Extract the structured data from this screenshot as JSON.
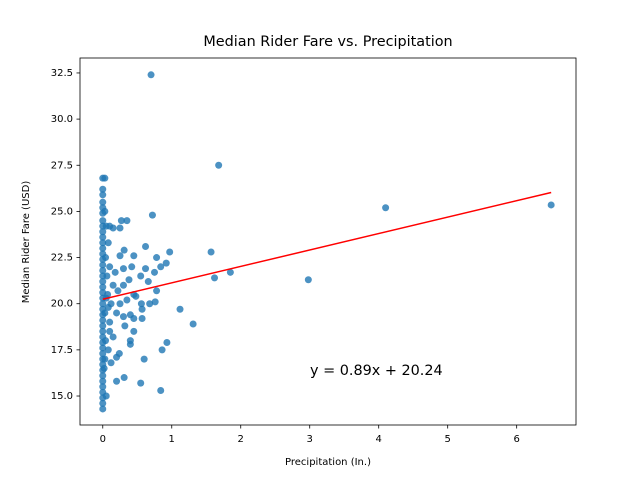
{
  "chart_data": {
    "type": "scatter",
    "title": "Median Rider Fare vs. Precipitation",
    "xlabel": "Precipitation (In.)",
    "ylabel": "Median Rider Fare (USD)",
    "annotation": "y = 0.89x + 20.24",
    "annotation_color": "#ff0000",
    "xlim": [
      -0.33,
      6.86
    ],
    "ylim": [
      13.43,
      33.31
    ],
    "xticks": [
      0,
      1,
      2,
      3,
      4,
      5,
      6
    ],
    "yticks": [
      {
        "value": 15,
        "label": "15.0"
      },
      {
        "value": 17.5,
        "label": "17.5"
      },
      {
        "value": 20,
        "label": "20.0"
      },
      {
        "value": 22.5,
        "label": "22.5"
      },
      {
        "value": 25,
        "label": "25.0"
      },
      {
        "value": 27.5,
        "label": "27.5"
      },
      {
        "value": 30,
        "label": "30.0"
      },
      {
        "value": 32.5,
        "label": "32.5"
      }
    ],
    "series": [
      {
        "color": "#1f77b4",
        "x": [
          0,
          0,
          0,
          0,
          0,
          0,
          0,
          0,
          0,
          0,
          0,
          0,
          0,
          0,
          0,
          0,
          0,
          0,
          0,
          0,
          0,
          0,
          0,
          0,
          0,
          0,
          0,
          0,
          0,
          0,
          0,
          0,
          0,
          0,
          0,
          0,
          0,
          0,
          0,
          0,
          0,
          0.03,
          0.03,
          0.05,
          0.04,
          0.06,
          0.05,
          0.03,
          0.04,
          0.03,
          0.05,
          0.02,
          0.7,
          1.68,
          4.1,
          6.5,
          2.98,
          1.85,
          1.57,
          1.62,
          1.12,
          1.31,
          0.97,
          0.92,
          0.84,
          0.78,
          0.72,
          0.62,
          0.62,
          0.55,
          0.75,
          0.66,
          0.78,
          0.76,
          0.68,
          0.56,
          0.57,
          0.57,
          0.93,
          0.86,
          0.6,
          0.84,
          0.55,
          0.31,
          0.2,
          0.35,
          0.27,
          0.25,
          0.31,
          0.45,
          0.42,
          0.25,
          0.18,
          0.3,
          0.38,
          0.3,
          0.45,
          0.35,
          0.22,
          0.4,
          0.45,
          0.3,
          0.32,
          0.45,
          0.4,
          0.4,
          0.24,
          0.2,
          0.15,
          0.1,
          0.12,
          0.15,
          0.1,
          0.08,
          0.1,
          0.15,
          0.2,
          0.25,
          0.48,
          0.07,
          0.08,
          0.1,
          0.08,
          0.12
        ],
        "values": [
          26.8,
          26.2,
          25.9,
          25.5,
          25.2,
          24.9,
          24.5,
          24.2,
          23.9,
          23.6,
          23.3,
          23.0,
          22.7,
          22.4,
          22.1,
          21.8,
          21.5,
          21.2,
          20.9,
          20.6,
          20.3,
          20.0,
          19.7,
          19.4,
          19.1,
          18.8,
          18.5,
          18.2,
          17.9,
          17.6,
          17.3,
          17.0,
          16.7,
          16.4,
          16.1,
          15.8,
          15.5,
          15.2,
          14.9,
          14.6,
          14.3,
          26.8,
          25.0,
          24.2,
          22.5,
          21.5,
          20.3,
          19.5,
          18.0,
          17.0,
          15.0,
          16.5,
          32.4,
          27.5,
          25.2,
          25.35,
          21.3,
          21.7,
          22.8,
          21.4,
          19.7,
          18.9,
          22.8,
          22.2,
          22.0,
          22.5,
          24.8,
          23.1,
          21.9,
          21.5,
          21.7,
          21.2,
          20.7,
          20.1,
          20.0,
          20.0,
          19.7,
          19.2,
          17.9,
          17.5,
          17.0,
          15.3,
          15.7,
          16.0,
          15.8,
          24.5,
          24.5,
          24.1,
          22.9,
          22.6,
          22.0,
          22.6,
          21.7,
          21.9,
          21.3,
          21.0,
          20.5,
          20.2,
          20.7,
          19.4,
          19.2,
          19.3,
          18.8,
          18.5,
          18.0,
          17.8,
          17.3,
          17.1,
          18.2,
          19.0,
          20.0,
          21.0,
          22.0,
          23.3,
          24.2,
          24.1,
          19.5,
          20.0,
          20.4,
          20.5,
          19.8,
          18.5,
          17.5,
          16.8
        ]
      }
    ],
    "fit_line": {
      "color": "#ff0000",
      "x": [
        0,
        6.5
      ],
      "values": [
        20.24,
        26.025
      ]
    }
  }
}
